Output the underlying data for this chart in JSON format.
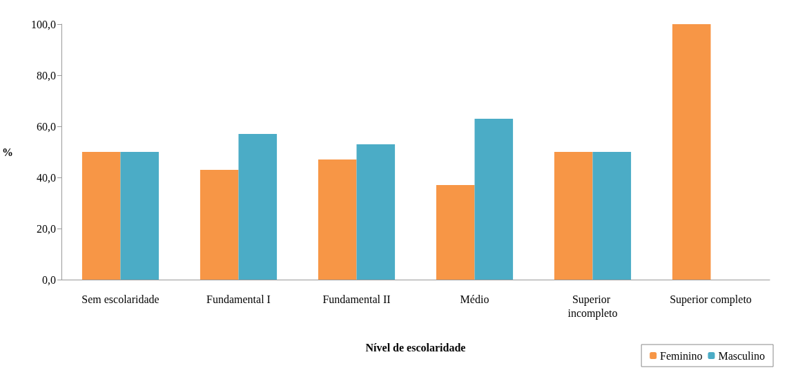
{
  "chart_data": {
    "type": "bar",
    "xlabel": "Nível de escolaridade",
    "ylabel": "%",
    "categories": [
      "Sem escolaridade",
      "Fundamental I",
      "Fundamental II",
      "Médio",
      "Superior incompleto",
      "Superior completo"
    ],
    "series": [
      {
        "name": "Feminino",
        "color": "#f79646",
        "values": [
          50,
          43,
          47,
          37,
          50,
          100
        ]
      },
      {
        "name": "Masculino",
        "color": "#4bacc6",
        "values": [
          50,
          57,
          53,
          63,
          50,
          0
        ]
      }
    ],
    "ylim": [
      0,
      100
    ],
    "yticks": [
      {
        "value": 0,
        "label": "0,0"
      },
      {
        "value": 20,
        "label": "20,0"
      },
      {
        "value": 40,
        "label": "40,0"
      },
      {
        "value": 60,
        "label": "60,0"
      },
      {
        "value": 80,
        "label": "80,0"
      },
      {
        "value": 100,
        "label": "100,0"
      }
    ],
    "grid": false,
    "legend": "bottom right"
  }
}
